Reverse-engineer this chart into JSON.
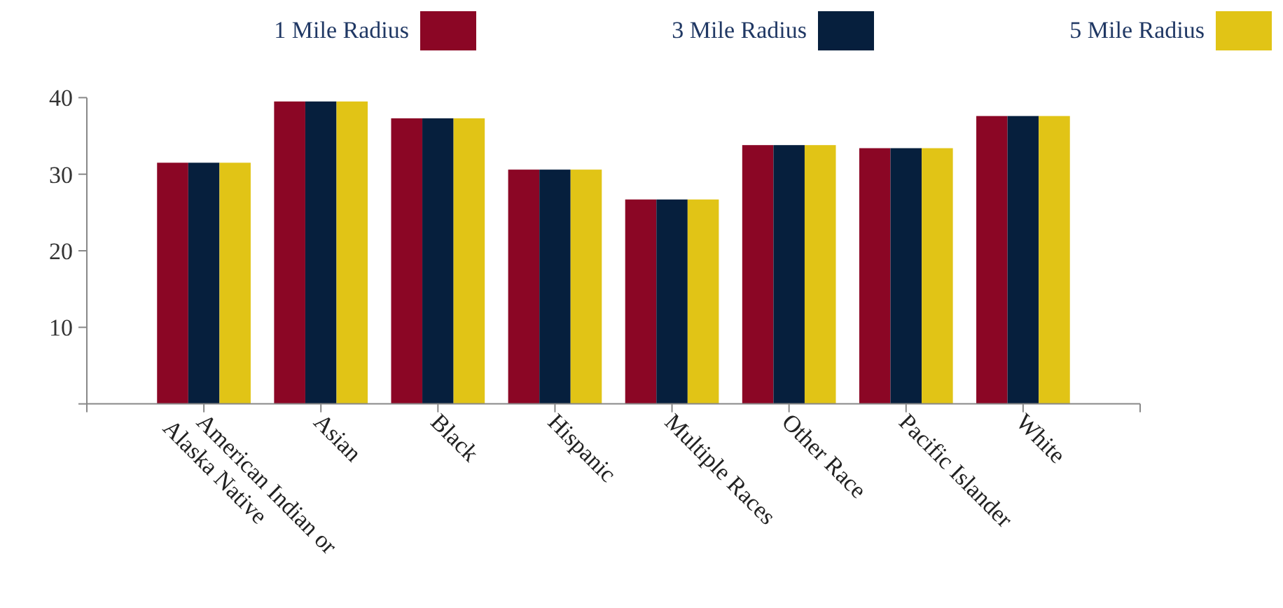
{
  "chart_data": {
    "type": "bar",
    "categories": [
      "American Indian or Alaska Native",
      "Asian",
      "Black",
      "Hispanic",
      "Multiple Races",
      "Other Race",
      "Pacific Islander",
      "White"
    ],
    "series": [
      {
        "name": "1 Mile Radius",
        "color": "#8b0625",
        "values": [
          31.5,
          39.5,
          37.3,
          30.6,
          26.7,
          33.8,
          33.4,
          37.6
        ]
      },
      {
        "name": "3 Mile Radius",
        "color": "#061f3d",
        "values": [
          31.5,
          39.5,
          37.3,
          30.6,
          26.7,
          33.8,
          33.4,
          37.6
        ]
      },
      {
        "name": "5 Mile Radius",
        "color": "#e1c416",
        "values": [
          31.5,
          39.5,
          37.3,
          30.6,
          26.7,
          33.8,
          33.4,
          37.6
        ]
      }
    ],
    "ylim": [
      0,
      40
    ],
    "yticks": [
      {
        "value": 0,
        "label": null
      },
      10,
      20,
      30,
      40
    ],
    "grid": false,
    "legend": "top"
  }
}
